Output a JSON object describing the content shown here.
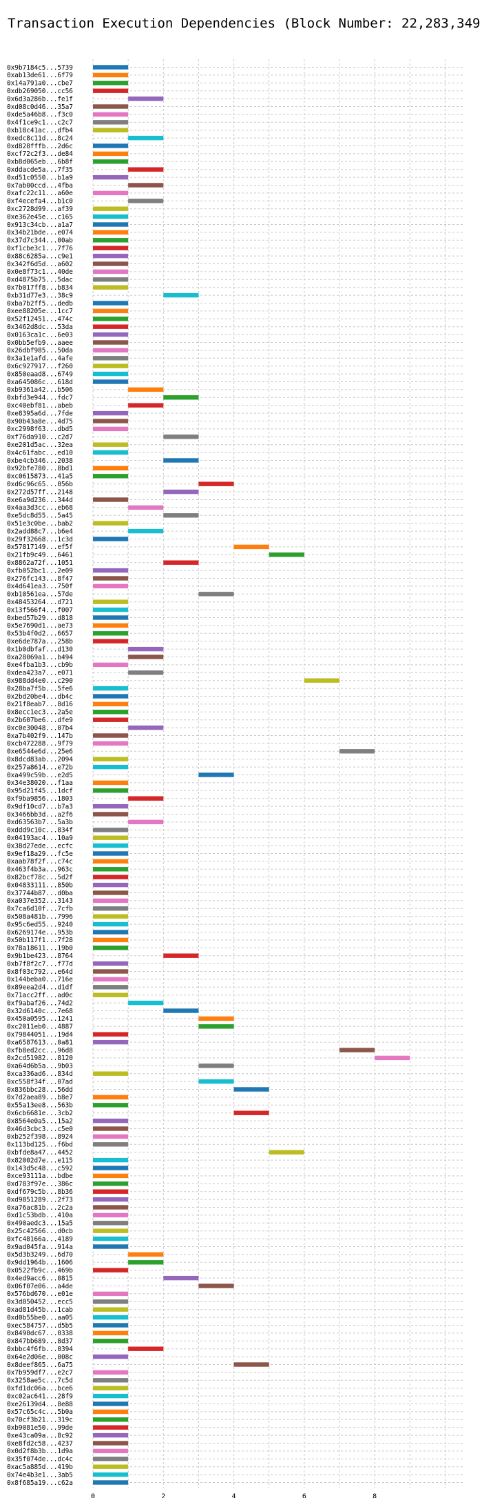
{
  "chart_data": {
    "type": "bar",
    "orientation": "horizontal",
    "title": "Transaction Execution Dependencies (Block Number: 22,283,349)",
    "xlabel": "",
    "ylabel": "",
    "xlim": [
      0,
      10.5
    ],
    "xticks": [
      0,
      2,
      4,
      6,
      8
    ],
    "grid": true,
    "colors": [
      "#1f77b4",
      "#ff7f0e",
      "#2ca02c",
      "#d62728",
      "#9467bd",
      "#8c564b",
      "#e377c2",
      "#7f7f7f",
      "#bcbd22",
      "#17becf"
    ],
    "transactions": [
      {
        "label": "0x9b7184c5...5739",
        "start": 0,
        "end": 1
      },
      {
        "label": "0xab13de61...6f79",
        "start": 0,
        "end": 1
      },
      {
        "label": "0x14a791a0...cbe7",
        "start": 0,
        "end": 1
      },
      {
        "label": "0xdb269050...cc56",
        "start": 0,
        "end": 1
      },
      {
        "label": "0x6d3a286b...fe1f",
        "start": 1,
        "end": 2
      },
      {
        "label": "0xd08c0d46...35a7",
        "start": 0,
        "end": 1
      },
      {
        "label": "0xde5a46b8...f3c0",
        "start": 0,
        "end": 1
      },
      {
        "label": "0x4f1ce9c1...c2c7",
        "start": 0,
        "end": 1
      },
      {
        "label": "0xb18c41ac...dfb4",
        "start": 0,
        "end": 1
      },
      {
        "label": "0xedc8c11d...8c24",
        "start": 1,
        "end": 2
      },
      {
        "label": "0xd828fffb...2d6c",
        "start": 0,
        "end": 1
      },
      {
        "label": "0xcf72c2f3...de84",
        "start": 0,
        "end": 1
      },
      {
        "label": "0xb8d065eb...6b8f",
        "start": 0,
        "end": 1
      },
      {
        "label": "0xddacde5a...7f35",
        "start": 1,
        "end": 2
      },
      {
        "label": "0xd51c0550...b1a9",
        "start": 0,
        "end": 1
      },
      {
        "label": "0x7ab00ccd...4fba",
        "start": 1,
        "end": 2
      },
      {
        "label": "0xafc22c11...a60e",
        "start": 0,
        "end": 1
      },
      {
        "label": "0xf4ecefa4...b1c0",
        "start": 1,
        "end": 2
      },
      {
        "label": "0xc2728d99...af39",
        "start": 0,
        "end": 1
      },
      {
        "label": "0xe362e45e...c165",
        "start": 0,
        "end": 1
      },
      {
        "label": "0x913c34cb...a1a7",
        "start": 0,
        "end": 1
      },
      {
        "label": "0x34b21bde...e074",
        "start": 0,
        "end": 1
      },
      {
        "label": "0x37d7c344...00ab",
        "start": 0,
        "end": 1
      },
      {
        "label": "0xf1cbe3c1...7f76",
        "start": 0,
        "end": 1
      },
      {
        "label": "0x88c6285a...c9e1",
        "start": 0,
        "end": 1
      },
      {
        "label": "0x342f6d5d...a602",
        "start": 0,
        "end": 1
      },
      {
        "label": "0x0e8f73c1...40de",
        "start": 0,
        "end": 1
      },
      {
        "label": "0xd4875b75...5dac",
        "start": 0,
        "end": 1
      },
      {
        "label": "0x7b017ff8...b834",
        "start": 0,
        "end": 1
      },
      {
        "label": "0xb31d77e3...38c9",
        "start": 2,
        "end": 3
      },
      {
        "label": "0xba7b2ff5...dedb",
        "start": 0,
        "end": 1
      },
      {
        "label": "0xee88205e...1cc7",
        "start": 0,
        "end": 1
      },
      {
        "label": "0x52f12451...474c",
        "start": 0,
        "end": 1
      },
      {
        "label": "0x3462d8dc...53da",
        "start": 0,
        "end": 1
      },
      {
        "label": "0x0163ca1c...6e03",
        "start": 0,
        "end": 1
      },
      {
        "label": "0x0bb5efb9...aaee",
        "start": 0,
        "end": 1
      },
      {
        "label": "0x26dbf985...50da",
        "start": 0,
        "end": 1
      },
      {
        "label": "0x3a1e1afd...4afe",
        "start": 0,
        "end": 1
      },
      {
        "label": "0x6c927917...f260",
        "start": 0,
        "end": 1
      },
      {
        "label": "0x850eaad8...6749",
        "start": 0,
        "end": 1
      },
      {
        "label": "0xa645086c...618d",
        "start": 0,
        "end": 1
      },
      {
        "label": "0xb9361a42...b506",
        "start": 1,
        "end": 2
      },
      {
        "label": "0xbfd3e944...fdc7",
        "start": 2,
        "end": 3
      },
      {
        "label": "0xc40ebf81...abeb",
        "start": 1,
        "end": 2
      },
      {
        "label": "0xe8395a6d...7fde",
        "start": 0,
        "end": 1
      },
      {
        "label": "0x90b43a8e...4d75",
        "start": 0,
        "end": 1
      },
      {
        "label": "0xc2998f63...dbd5",
        "start": 0,
        "end": 1
      },
      {
        "label": "0xf76da910...c2d7",
        "start": 2,
        "end": 3
      },
      {
        "label": "0xe201d5ac...32ea",
        "start": 0,
        "end": 1
      },
      {
        "label": "0x4c61fabc...ed10",
        "start": 0,
        "end": 1
      },
      {
        "label": "0xbe4cb346...2038",
        "start": 2,
        "end": 3
      },
      {
        "label": "0x92bfe780...8bd1",
        "start": 0,
        "end": 1
      },
      {
        "label": "0xc0615873...41a5",
        "start": 0,
        "end": 1
      },
      {
        "label": "0xd6c96c65...056b",
        "start": 3,
        "end": 4
      },
      {
        "label": "0x272d57ff...2148",
        "start": 2,
        "end": 3
      },
      {
        "label": "0xe6a9d236...344d",
        "start": 0,
        "end": 1
      },
      {
        "label": "0x4aa3d3cc...eb68",
        "start": 1,
        "end": 2
      },
      {
        "label": "0xe5dc8d55...5a45",
        "start": 2,
        "end": 3
      },
      {
        "label": "0x51e3c0be...bab2",
        "start": 0,
        "end": 1
      },
      {
        "label": "0x2add88c7...b6e4",
        "start": 1,
        "end": 2
      },
      {
        "label": "0x29f32668...1c3d",
        "start": 0,
        "end": 1
      },
      {
        "label": "0x57817149...ef5f",
        "start": 4,
        "end": 5
      },
      {
        "label": "0x21fb9c49...6461",
        "start": 5,
        "end": 6
      },
      {
        "label": "0x8862a72f...1051",
        "start": 2,
        "end": 3
      },
      {
        "label": "0xfb052bc1...2e09",
        "start": 0,
        "end": 1
      },
      {
        "label": "0x276fc143...8f47",
        "start": 0,
        "end": 1
      },
      {
        "label": "0x4d641ea3...750f",
        "start": 0,
        "end": 1
      },
      {
        "label": "0xb10561ea...57de",
        "start": 3,
        "end": 4
      },
      {
        "label": "0x48453264...d721",
        "start": 0,
        "end": 1
      },
      {
        "label": "0x13f566f4...f007",
        "start": 0,
        "end": 1
      },
      {
        "label": "0xbed57b29...d818",
        "start": 0,
        "end": 1
      },
      {
        "label": "0x5e7690d1...ae73",
        "start": 0,
        "end": 1
      },
      {
        "label": "0x53b4f0d2...6657",
        "start": 0,
        "end": 1
      },
      {
        "label": "0xe6de787a...258b",
        "start": 0,
        "end": 1
      },
      {
        "label": "0x1b0dbfaf...d130",
        "start": 1,
        "end": 2
      },
      {
        "label": "0xa28069a1...b494",
        "start": 1,
        "end": 2
      },
      {
        "label": "0xe4fba1b3...cb9b",
        "start": 0,
        "end": 1
      },
      {
        "label": "0xdea423a7...e071",
        "start": 1,
        "end": 2
      },
      {
        "label": "0x988dd4e0...c290",
        "start": 6,
        "end": 7
      },
      {
        "label": "0x28ba7f5b...5fe6",
        "start": 0,
        "end": 1
      },
      {
        "label": "0x2bd20be4...db4c",
        "start": 0,
        "end": 1
      },
      {
        "label": "0x21f8eab7...8d16",
        "start": 0,
        "end": 1
      },
      {
        "label": "0x8ecc1ec3...2a5e",
        "start": 0,
        "end": 1
      },
      {
        "label": "0x2b607be6...dfe9",
        "start": 0,
        "end": 1
      },
      {
        "label": "0xc0e30048...07b4",
        "start": 1,
        "end": 2
      },
      {
        "label": "0xa7b402f9...147b",
        "start": 0,
        "end": 1
      },
      {
        "label": "0xcb472288...9f79",
        "start": 0,
        "end": 1
      },
      {
        "label": "0xe6544e6d...25e6",
        "start": 7,
        "end": 8
      },
      {
        "label": "0x8dcd83ab...2094",
        "start": 0,
        "end": 1
      },
      {
        "label": "0x257a8614...e72b",
        "start": 0,
        "end": 1
      },
      {
        "label": "0xa499c59b...e2d5",
        "start": 3,
        "end": 4
      },
      {
        "label": "0x34e38020...f1aa",
        "start": 0,
        "end": 1
      },
      {
        "label": "0x95d21f45...1dcf",
        "start": 0,
        "end": 1
      },
      {
        "label": "0xf9ba9856...1803",
        "start": 1,
        "end": 2
      },
      {
        "label": "0x9df10cd7...b7a3",
        "start": 0,
        "end": 1
      },
      {
        "label": "0x3466bb3d...a2f6",
        "start": 0,
        "end": 1
      },
      {
        "label": "0xd63563b7...5a3b",
        "start": 1,
        "end": 2
      },
      {
        "label": "0xddd9c10c...834f",
        "start": 0,
        "end": 1
      },
      {
        "label": "0x04193ac4...10a9",
        "start": 0,
        "end": 1
      },
      {
        "label": "0x38d27ede...ecfc",
        "start": 0,
        "end": 1
      },
      {
        "label": "0x9ef18a29...fc5e",
        "start": 0,
        "end": 1
      },
      {
        "label": "0xaab78f2f...c74c",
        "start": 0,
        "end": 1
      },
      {
        "label": "0x463f4b3a...963c",
        "start": 0,
        "end": 1
      },
      {
        "label": "0x82bcf78c...5d2f",
        "start": 0,
        "end": 1
      },
      {
        "label": "0x04833111...850b",
        "start": 0,
        "end": 1
      },
      {
        "label": "0x37744b87...d0ba",
        "start": 0,
        "end": 1
      },
      {
        "label": "0xa037e352...3143",
        "start": 0,
        "end": 1
      },
      {
        "label": "0x7ca6d10f...7cfb",
        "start": 0,
        "end": 1
      },
      {
        "label": "0x508a481b...7996",
        "start": 0,
        "end": 1
      },
      {
        "label": "0x95c6ed55...9240",
        "start": 0,
        "end": 1
      },
      {
        "label": "0x6269174e...953b",
        "start": 0,
        "end": 1
      },
      {
        "label": "0x50b117f1...7f28",
        "start": 0,
        "end": 1
      },
      {
        "label": "0x78a18611...19b0",
        "start": 0,
        "end": 1
      },
      {
        "label": "0x9b1be423...8764",
        "start": 2,
        "end": 3
      },
      {
        "label": "0xb7f8f2c7...f77d",
        "start": 0,
        "end": 1
      },
      {
        "label": "0x8f03c792...e64d",
        "start": 0,
        "end": 1
      },
      {
        "label": "0x144beba0...716e",
        "start": 0,
        "end": 1
      },
      {
        "label": "0x89eea2d4...d1df",
        "start": 0,
        "end": 1
      },
      {
        "label": "0x71acc2ff...ad0c",
        "start": 0,
        "end": 1
      },
      {
        "label": "0xf9abaf26...74d2",
        "start": 1,
        "end": 2
      },
      {
        "label": "0x32d6140c...7e68",
        "start": 2,
        "end": 3
      },
      {
        "label": "0x450a0595...1241",
        "start": 3,
        "end": 4
      },
      {
        "label": "0xc2011eb0...4887",
        "start": 3,
        "end": 4
      },
      {
        "label": "0x79844051...19d4",
        "start": 0,
        "end": 1
      },
      {
        "label": "0xa6587613...0a81",
        "start": 0,
        "end": 1
      },
      {
        "label": "0xfb8ed2cc...96d8",
        "start": 7,
        "end": 8
      },
      {
        "label": "0x2cd51982...8120",
        "start": 8,
        "end": 9
      },
      {
        "label": "0xa64d6b5a...9b03",
        "start": 3,
        "end": 4
      },
      {
        "label": "0xca336ad6...834d",
        "start": 0,
        "end": 1
      },
      {
        "label": "0xc558f34f...07ad",
        "start": 3,
        "end": 4
      },
      {
        "label": "0x836bbc28...56dd",
        "start": 4,
        "end": 5
      },
      {
        "label": "0x7d2aea89...b8e7",
        "start": 0,
        "end": 1
      },
      {
        "label": "0x55a13ee8...563b",
        "start": 0,
        "end": 1
      },
      {
        "label": "0x6cb6681e...3cb2",
        "start": 4,
        "end": 5
      },
      {
        "label": "0x8564e0a5...15a2",
        "start": 0,
        "end": 1
      },
      {
        "label": "0x46d3cbc3...c5e0",
        "start": 0,
        "end": 1
      },
      {
        "label": "0xb252f398...8924",
        "start": 0,
        "end": 1
      },
      {
        "label": "0x113bd125...f6bd",
        "start": 0,
        "end": 1
      },
      {
        "label": "0xbfde8a47...4452",
        "start": 5,
        "end": 6
      },
      {
        "label": "0x82002d7e...e115",
        "start": 0,
        "end": 1
      },
      {
        "label": "0x143d5c48...c592",
        "start": 0,
        "end": 1
      },
      {
        "label": "0xce93111a...bdbe",
        "start": 0,
        "end": 1
      },
      {
        "label": "0xd783f97e...386c",
        "start": 0,
        "end": 1
      },
      {
        "label": "0xdf679c5b...8b36",
        "start": 0,
        "end": 1
      },
      {
        "label": "0xd9851289...2f73",
        "start": 0,
        "end": 1
      },
      {
        "label": "0xa76ac81b...2c2a",
        "start": 0,
        "end": 1
      },
      {
        "label": "0xd1c53bdb...410a",
        "start": 0,
        "end": 1
      },
      {
        "label": "0x490aedc3...15a5",
        "start": 0,
        "end": 1
      },
      {
        "label": "0x25c42566...d0cb",
        "start": 0,
        "end": 1
      },
      {
        "label": "0xfc48166a...4189",
        "start": 0,
        "end": 1
      },
      {
        "label": "0x9ad045fa...914a",
        "start": 0,
        "end": 1
      },
      {
        "label": "0x5d3b3249...6d70",
        "start": 1,
        "end": 2
      },
      {
        "label": "0x9dd1964b...1606",
        "start": 1,
        "end": 2
      },
      {
        "label": "0x0522fb9c...469b",
        "start": 0,
        "end": 1
      },
      {
        "label": "0x4ed9acc6...0815",
        "start": 2,
        "end": 3
      },
      {
        "label": "0x06f07e06...a4de",
        "start": 3,
        "end": 4
      },
      {
        "label": "0x576bd670...e01e",
        "start": 0,
        "end": 1
      },
      {
        "label": "0x3d850452...ecc5",
        "start": 0,
        "end": 1
      },
      {
        "label": "0xad81d45b...1cab",
        "start": 0,
        "end": 1
      },
      {
        "label": "0xd0b55be0...aa05",
        "start": 0,
        "end": 1
      },
      {
        "label": "0xec584757...d5b5",
        "start": 0,
        "end": 1
      },
      {
        "label": "0x8490dc67...0338",
        "start": 0,
        "end": 1
      },
      {
        "label": "0x847bb689...8d37",
        "start": 0,
        "end": 1
      },
      {
        "label": "0xbbc4f6fb...0394",
        "start": 1,
        "end": 2
      },
      {
        "label": "0x64e2d06e...008c",
        "start": 0,
        "end": 1
      },
      {
        "label": "0x8deef865...6a75",
        "start": 4,
        "end": 5
      },
      {
        "label": "0x7b959df7...e2c7",
        "start": 0,
        "end": 1
      },
      {
        "label": "0x3258ae5c...7c5d",
        "start": 0,
        "end": 1
      },
      {
        "label": "0xfd1dc06a...bce6",
        "start": 0,
        "end": 1
      },
      {
        "label": "0xc02ac641...28f9",
        "start": 0,
        "end": 1
      },
      {
        "label": "0xe26139d4...8e88",
        "start": 0,
        "end": 1
      },
      {
        "label": "0x57c65c4c...5b0a",
        "start": 0,
        "end": 1
      },
      {
        "label": "0x70cf3b21...319c",
        "start": 0,
        "end": 1
      },
      {
        "label": "0xb9081e50...99de",
        "start": 0,
        "end": 1
      },
      {
        "label": "0xe43ca09a...8c92",
        "start": 0,
        "end": 1
      },
      {
        "label": "0xe8fd2c58...4237",
        "start": 0,
        "end": 1
      },
      {
        "label": "0x0d2f8b3b...1d9a",
        "start": 0,
        "end": 1
      },
      {
        "label": "0x35f074de...dc4c",
        "start": 0,
        "end": 1
      },
      {
        "label": "0xac5a885d...419b",
        "start": 0,
        "end": 1
      },
      {
        "label": "0x74e4b3e1...3ab5",
        "start": 0,
        "end": 1
      },
      {
        "label": "0x8f685a19...c62a",
        "start": 0,
        "end": 1
      }
    ]
  }
}
